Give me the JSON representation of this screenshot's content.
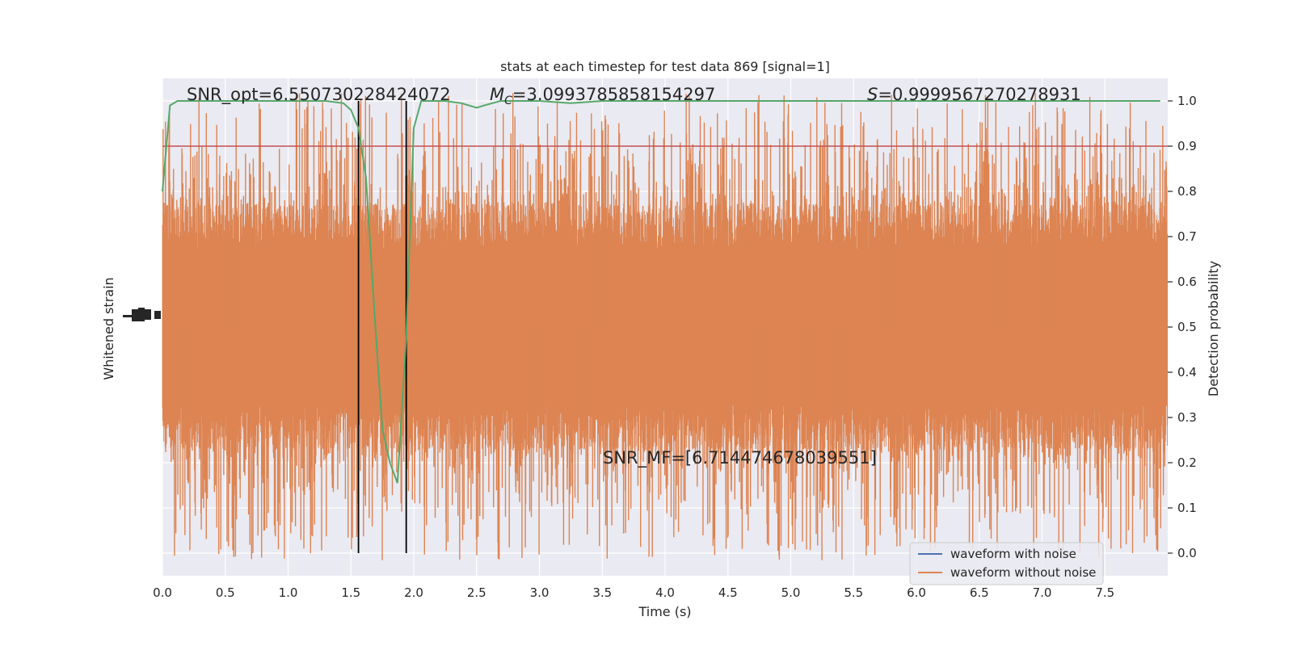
{
  "chart_data": {
    "type": "line",
    "title": "stats at each timestep for test data 869 [signal=1]",
    "xlabel": "Time (s)",
    "ylabel_left": "Whitened strain",
    "ylabel_right": "Detection probability",
    "xlim": [
      0.0,
      8.0
    ],
    "ylim_right": [
      -0.05,
      1.05
    ],
    "x_ticks": [
      "0.0",
      "0.5",
      "1.0",
      "1.5",
      "2.0",
      "2.5",
      "3.0",
      "3.5",
      "4.0",
      "4.5",
      "5.0",
      "5.5",
      "6.0",
      "6.5",
      "7.0",
      "7.5"
    ],
    "y_right_ticks": [
      "0.0",
      "0.1",
      "0.2",
      "0.3",
      "0.4",
      "0.5",
      "0.6",
      "0.7",
      "0.8",
      "0.9",
      "1.0"
    ],
    "grid": true,
    "background": "#eaeaf2",
    "annotations": {
      "snr_opt": "SNR_opt=6.550730228424072",
      "mc_symbol": "M",
      "mc_sub": "C",
      "mc_value": "=3.0993785858154297",
      "s_symbol": "S",
      "s_value": "=0.9999567270278931",
      "snr_mf": "SNR_MF=[6.714474678039551]"
    },
    "threshold": {
      "value": 0.9,
      "color": "#c44e52"
    },
    "vertical_lines": [
      1.56,
      1.94
    ],
    "probability_series": {
      "name": "",
      "color": "#55a868",
      "x": [
        0.0,
        0.06,
        0.12,
        0.2,
        0.4,
        0.7,
        1.0,
        1.3,
        1.44,
        1.5,
        1.56,
        1.62,
        1.69,
        1.75,
        1.81,
        1.87,
        1.94,
        2.0,
        2.06,
        2.12,
        2.25,
        2.38,
        2.5,
        2.56,
        2.69,
        2.75,
        3.0,
        3.25,
        3.5,
        4.0,
        5.0,
        6.0,
        7.0,
        7.94
      ],
      "y": [
        0.8,
        0.99,
        1.0,
        1.0,
        1.0,
        1.0,
        1.0,
        1.0,
        0.995,
        0.98,
        0.94,
        0.83,
        0.52,
        0.275,
        0.2,
        0.155,
        0.48,
        0.94,
        1.0,
        1.0,
        1.0,
        0.995,
        0.985,
        0.99,
        1.0,
        1.0,
        1.0,
        0.995,
        1.0,
        1.0,
        1.0,
        1.0,
        1.0,
        1.0
      ]
    },
    "legend": {
      "location": "lower right",
      "entries": [
        {
          "label": "waveform with noise",
          "color": "#4c72b0"
        },
        {
          "label": "waveform without noise",
          "color": "#dd8452"
        }
      ]
    },
    "strain_color": "#dd8452"
  }
}
